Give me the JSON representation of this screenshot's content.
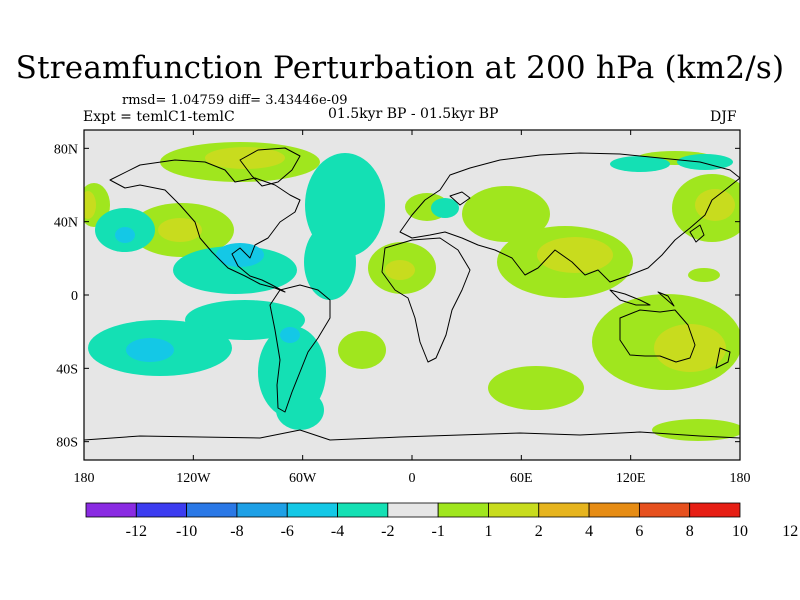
{
  "title": "Streamfunction Perturbation at 200 hPa (km2/s)",
  "stats_line": "rmsd= 1.04759 diff= 3.43446e-09",
  "left_label": "Expt = temlC1-temlC",
  "center_label": "01.5kyr BP - 01.5kyr BP",
  "right_label": "DJF",
  "map": {
    "projection": "cylindrical equidistant",
    "lon_range": [
      -180,
      180
    ],
    "lat_range": [
      -90,
      90
    ],
    "y_ticks": [
      {
        "label": "80N",
        "lat": 80
      },
      {
        "label": "40N",
        "lat": 40
      },
      {
        "label": "0",
        "lat": 0
      },
      {
        "label": "40S",
        "lat": -40
      },
      {
        "label": "80S",
        "lat": -80
      }
    ],
    "x_ticks": [
      {
        "label": "180",
        "lon": -180
      },
      {
        "label": "120W",
        "lon": -120
      },
      {
        "label": "60W",
        "lon": -60
      },
      {
        "label": "0",
        "lon": 0
      },
      {
        "label": "60E",
        "lon": 60
      },
      {
        "label": "120E",
        "lon": 120
      },
      {
        "label": "180",
        "lon": 180
      }
    ]
  },
  "colorbar": {
    "colors": [
      "#8a2be2",
      "#3c3cf0",
      "#2a78e6",
      "#1ea0e6",
      "#14c8e6",
      "#14e0b4",
      "#e6e6e6",
      "#a0e61e",
      "#c8dc1e",
      "#e6b41e",
      "#e68c14",
      "#e6501e",
      "#e61e14"
    ],
    "labels": [
      "-12",
      "-10",
      "-8",
      "-6",
      "-4",
      "-2",
      "-1",
      "1",
      "2",
      "4",
      "6",
      "8",
      "10",
      "12"
    ]
  },
  "field_colors": {
    "neutral": "#e6e6e6",
    "pos_1_2": "#a0e61e",
    "pos_2_4": "#c8dc1e",
    "neg_1_2": "#14e0b4",
    "neg_2_4": "#14c8e6"
  }
}
